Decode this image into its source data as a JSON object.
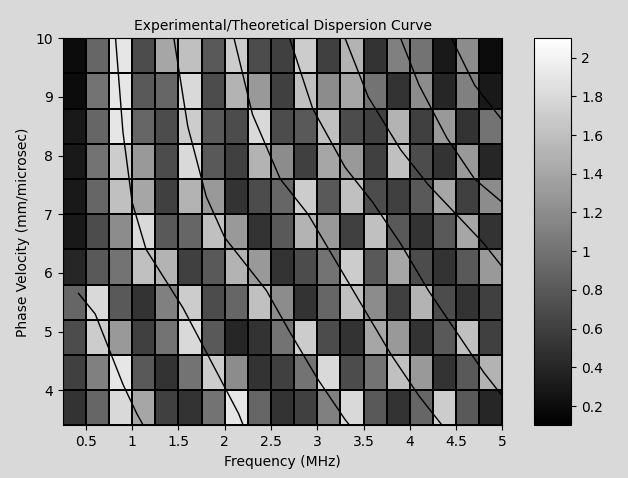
{
  "chart_data": {
    "type": "heatmap",
    "title": "Experimental/Theoretical Dispersion Curve",
    "x_label": "Frequency (MHz)",
    "y_label": "Phase Velocity (mm/microsec)",
    "xlim": [
      0.25,
      5.0
    ],
    "ylim": [
      3.4,
      10.0
    ],
    "xticks": [
      0.5,
      1,
      1.5,
      2,
      2.5,
      3,
      3.5,
      4,
      4.5,
      5
    ],
    "yticks": [
      4,
      5,
      6,
      7,
      8,
      9,
      10
    ],
    "x_edges": [
      0.25,
      0.5,
      0.75,
      1.0,
      1.25,
      1.5,
      1.75,
      2.0,
      2.25,
      2.5,
      2.75,
      3.0,
      3.25,
      3.5,
      3.75,
      4.0,
      4.25,
      4.5,
      4.75,
      5.0
    ],
    "y_edges": [
      3.4,
      4.0,
      4.6,
      5.2,
      5.8,
      6.4,
      7.0,
      7.6,
      8.2,
      8.8,
      9.4,
      10.0
    ],
    "cells": [
      [
        0.5,
        0.9,
        1.8,
        1.4,
        0.6,
        0.5,
        1.0,
        1.9,
        0.9,
        0.5,
        0.6,
        1.1,
        1.8,
        0.8,
        0.5,
        0.9,
        1.7,
        0.8,
        0.4
      ],
      [
        0.6,
        1.1,
        1.9,
        0.8,
        0.5,
        1.0,
        1.7,
        1.2,
        0.5,
        0.6,
        1.0,
        1.8,
        0.7,
        1.0,
        1.6,
        1.3,
        0.5,
        0.8,
        1.5
      ],
      [
        0.7,
        1.7,
        1.3,
        0.6,
        1.0,
        1.8,
        0.8,
        0.4,
        0.5,
        1.0,
        1.7,
        0.7,
        0.5,
        1.4,
        1.3,
        0.5,
        0.8,
        1.6,
        0.6
      ],
      [
        0.9,
        1.8,
        0.8,
        0.5,
        1.1,
        1.7,
        0.7,
        0.9,
        1.6,
        1.2,
        0.5,
        0.9,
        1.6,
        1.2,
        0.6,
        1.5,
        0.7,
        0.5,
        0.6
      ],
      [
        0.4,
        0.8,
        1.0,
        1.6,
        1.5,
        0.6,
        0.8,
        1.5,
        1.3,
        0.5,
        0.7,
        1.0,
        1.7,
        0.8,
        1.4,
        0.7,
        0.5,
        0.8,
        1.3
      ],
      [
        0.3,
        0.7,
        1.2,
        1.8,
        0.8,
        0.9,
        1.6,
        1.3,
        0.5,
        0.8,
        1.5,
        1.3,
        0.6,
        1.6,
        0.8,
        0.5,
        0.8,
        1.4,
        0.5
      ],
      [
        0.3,
        0.9,
        1.6,
        1.4,
        0.6,
        1.5,
        1.3,
        0.5,
        0.7,
        0.9,
        1.7,
        0.8,
        1.6,
        0.7,
        0.6,
        0.8,
        1.4,
        0.6,
        1.2
      ],
      [
        0.3,
        1.0,
        1.7,
        1.3,
        0.7,
        1.8,
        0.8,
        0.6,
        1.5,
        1.2,
        0.6,
        1.4,
        1.3,
        0.6,
        1.6,
        0.7,
        0.5,
        1.3,
        0.4
      ],
      [
        0.3,
        0.9,
        1.9,
        0.9,
        0.7,
        1.7,
        0.8,
        0.7,
        1.8,
        0.7,
        0.8,
        1.6,
        0.7,
        0.6,
        1.5,
        0.6,
        1.3,
        0.5,
        1.0
      ],
      [
        0.2,
        1.0,
        1.9,
        0.8,
        0.9,
        1.8,
        0.7,
        1.5,
        1.3,
        0.6,
        1.6,
        1.2,
        1.4,
        1.0,
        0.5,
        1.2,
        0.4,
        1.1,
        0.3
      ],
      [
        0.2,
        0.9,
        1.9,
        0.7,
        1.4,
        1.6,
        0.8,
        1.7,
        0.7,
        0.6,
        1.7,
        0.6,
        1.5,
        0.5,
        1.1,
        1.0,
        0.3,
        1.2,
        0.2
      ]
    ],
    "colorbar_range": [
      0.1,
      2.1
    ],
    "colorbar_ticks": [
      0.2,
      0.4,
      0.6,
      0.8,
      1,
      1.2,
      1.4,
      1.6,
      1.8,
      2
    ],
    "color": "black",
    "curves": [
      {
        "x": [
          0.42,
          0.6,
          0.75,
          0.9,
          1.05,
          1.12
        ],
        "y": [
          5.65,
          5.3,
          4.7,
          4.1,
          3.6,
          3.4
        ]
      },
      {
        "x": [
          0.82,
          0.9,
          1.0,
          1.15,
          1.35,
          1.55,
          1.75,
          1.95,
          2.15,
          2.2
        ],
        "y": [
          10.0,
          8.4,
          7.2,
          6.4,
          5.9,
          5.4,
          4.8,
          4.2,
          3.6,
          3.4
        ]
      },
      {
        "x": [
          1.45,
          1.6,
          1.8,
          2.0,
          2.2,
          2.45,
          2.7,
          3.0,
          3.3,
          3.35
        ],
        "y": [
          10.0,
          8.5,
          7.3,
          6.6,
          6.2,
          5.7,
          5.0,
          4.2,
          3.5,
          3.4
        ]
      },
      {
        "x": [
          2.1,
          2.3,
          2.6,
          2.9,
          3.2,
          3.5,
          3.8,
          4.1,
          4.35
        ],
        "y": [
          10.0,
          8.7,
          7.6,
          7.0,
          6.2,
          5.4,
          4.6,
          3.9,
          3.4
        ]
      },
      {
        "x": [
          2.7,
          2.95,
          3.3,
          3.6,
          3.9,
          4.2,
          4.5,
          4.8,
          5.0
        ],
        "y": [
          10.0,
          8.8,
          7.8,
          7.2,
          6.5,
          5.7,
          5.0,
          4.3,
          3.9
        ]
      },
      {
        "x": [
          3.3,
          3.55,
          3.9,
          4.2,
          4.5,
          4.8,
          5.0
        ],
        "y": [
          10.0,
          9.0,
          8.1,
          7.5,
          7.0,
          6.5,
          6.1
        ]
      },
      {
        "x": [
          3.9,
          4.1,
          4.4,
          4.7,
          5.0
        ],
        "y": [
          10.0,
          9.2,
          8.3,
          7.6,
          7.2
        ]
      },
      {
        "x": [
          4.45,
          4.7,
          5.0
        ],
        "y": [
          10.0,
          9.2,
          8.6
        ]
      }
    ]
  }
}
